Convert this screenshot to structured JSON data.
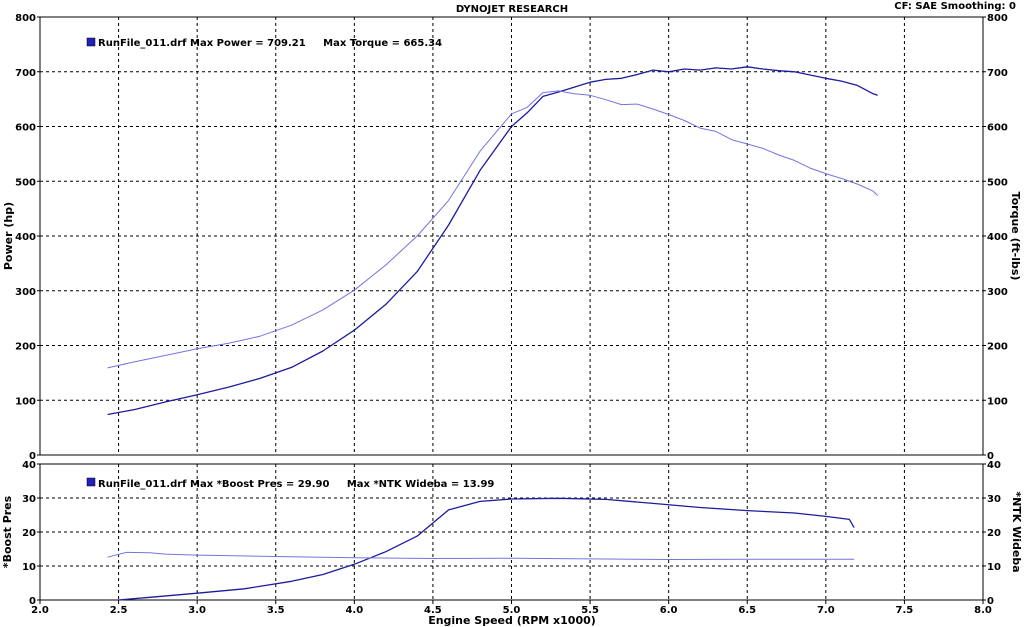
{
  "header": {
    "title": "DYNOJET RESEARCH",
    "status": "CF: SAE  Smoothing: 0"
  },
  "colors": {
    "primary_series": "#1c1c9c",
    "secondary_series": "#7474e0",
    "grid": "#000000",
    "background": "#ffffff"
  },
  "chart_data": [
    {
      "type": "line",
      "panel": "power_torque",
      "legend": "RunFile_011.drf Max Power = 709.21     Max Torque = 665.34",
      "ylabel": "Power (hp)",
      "ylabel_right": "Torque (ft-lbs)",
      "ylim": [
        0,
        800
      ],
      "yticks": [
        "0",
        "100",
        "200",
        "300",
        "400",
        "500",
        "600",
        "700",
        "800"
      ],
      "xlim": [
        2.0,
        8.0
      ],
      "grid": true,
      "series": [
        {
          "name": "Power (hp)",
          "color": "#1c1c9c",
          "points": [
            [
              2.43,
              74
            ],
            [
              2.6,
              83
            ],
            [
              2.8,
              97
            ],
            [
              3.0,
              110
            ],
            [
              3.2,
              124
            ],
            [
              3.4,
              140
            ],
            [
              3.6,
              160
            ],
            [
              3.8,
              190
            ],
            [
              4.0,
              228
            ],
            [
              4.2,
              275
            ],
            [
              4.4,
              335
            ],
            [
              4.6,
              420
            ],
            [
              4.8,
              520
            ],
            [
              5.0,
              600
            ],
            [
              5.1,
              625
            ],
            [
              5.2,
              655
            ],
            [
              5.3,
              663
            ],
            [
              5.4,
              672
            ],
            [
              5.5,
              681
            ],
            [
              5.6,
              686
            ],
            [
              5.7,
              688
            ],
            [
              5.8,
              695
            ],
            [
              5.9,
              703
            ],
            [
              6.0,
              700
            ],
            [
              6.1,
              705
            ],
            [
              6.2,
              703
            ],
            [
              6.3,
              707
            ],
            [
              6.4,
              705
            ],
            [
              6.5,
              709
            ],
            [
              6.6,
              705
            ],
            [
              6.7,
              702
            ],
            [
              6.8,
              700
            ],
            [
              6.9,
              694
            ],
            [
              7.0,
              688
            ],
            [
              7.1,
              683
            ],
            [
              7.2,
              675
            ],
            [
              7.3,
              660
            ],
            [
              7.33,
              657
            ]
          ]
        },
        {
          "name": "Torque (ft-lbs)",
          "color": "#7474e0",
          "points": [
            [
              2.43,
              159
            ],
            [
              2.6,
              170
            ],
            [
              2.8,
              182
            ],
            [
              3.0,
              194
            ],
            [
              3.2,
              204
            ],
            [
              3.4,
              217
            ],
            [
              3.6,
              237
            ],
            [
              3.8,
              265
            ],
            [
              4.0,
              301
            ],
            [
              4.2,
              347
            ],
            [
              4.4,
              400
            ],
            [
              4.6,
              465
            ],
            [
              4.8,
              555
            ],
            [
              5.0,
              623
            ],
            [
              5.1,
              635
            ],
            [
              5.2,
              662
            ],
            [
              5.3,
              665
            ],
            [
              5.4,
              660
            ],
            [
              5.5,
              657
            ],
            [
              5.6,
              649
            ],
            [
              5.7,
              640
            ],
            [
              5.8,
              641
            ],
            [
              5.9,
              632
            ],
            [
              6.0,
              622
            ],
            [
              6.1,
              611
            ],
            [
              6.2,
              597
            ],
            [
              6.3,
              591
            ],
            [
              6.4,
              576
            ],
            [
              6.5,
              568
            ],
            [
              6.6,
              560
            ],
            [
              6.7,
              548
            ],
            [
              6.8,
              538
            ],
            [
              6.9,
              524
            ],
            [
              7.0,
              514
            ],
            [
              7.1,
              505
            ],
            [
              7.2,
              495
            ],
            [
              7.3,
              482
            ],
            [
              7.33,
              474
            ]
          ]
        }
      ]
    },
    {
      "type": "line",
      "panel": "boost_afr",
      "legend": "RunFile_011.drf Max *Boost Pres = 29.90     Max *NTK Wideba = 13.99",
      "ylabel": "*Boost Pres",
      "ylabel_right": "*NTK Wideba",
      "ylim": [
        0,
        40
      ],
      "yticks": [
        "0",
        "10",
        "20",
        "30",
        "40"
      ],
      "xlim": [
        2.0,
        8.0
      ],
      "xticks": [
        "2.0",
        "2.5",
        "3.0",
        "3.5",
        "4.0",
        "4.5",
        "5.0",
        "5.5",
        "6.0",
        "6.5",
        "7.0",
        "7.5",
        "8.0"
      ],
      "xlabel": "Engine Speed (RPM x1000)",
      "grid": true,
      "series": [
        {
          "name": "*Boost Pres",
          "color": "#1c1c9c",
          "points": [
            [
              2.5,
              0
            ],
            [
              2.7,
              0.8
            ],
            [
              3.0,
              2
            ],
            [
              3.3,
              3.3
            ],
            [
              3.6,
              5.5
            ],
            [
              3.8,
              7.5
            ],
            [
              4.0,
              10.5
            ],
            [
              4.2,
              14.2
            ],
            [
              4.4,
              18.8
            ],
            [
              4.6,
              26.5
            ],
            [
              4.8,
              29
            ],
            [
              5.0,
              29.7
            ],
            [
              5.3,
              29.9
            ],
            [
              5.6,
              29.6
            ],
            [
              5.9,
              28.4
            ],
            [
              6.2,
              27.2
            ],
            [
              6.5,
              26.3
            ],
            [
              6.8,
              25.6
            ],
            [
              7.0,
              24.6
            ],
            [
              7.15,
              23.7
            ],
            [
              7.18,
              21.3
            ]
          ]
        },
        {
          "name": "*NTK Wideba",
          "color": "#7474e0",
          "points": [
            [
              2.43,
              12.6
            ],
            [
              2.55,
              14
            ],
            [
              2.7,
              13.9
            ],
            [
              2.8,
              13.5
            ],
            [
              3.0,
              13.2
            ],
            [
              3.5,
              12.8
            ],
            [
              4.0,
              12.4
            ],
            [
              4.5,
              12.2
            ],
            [
              5.0,
              12.3
            ],
            [
              5.5,
              12.1
            ],
            [
              6.0,
              11.9
            ],
            [
              6.5,
              12.0
            ],
            [
              7.0,
              12.0
            ],
            [
              7.18,
              12.0
            ]
          ]
        }
      ]
    }
  ]
}
